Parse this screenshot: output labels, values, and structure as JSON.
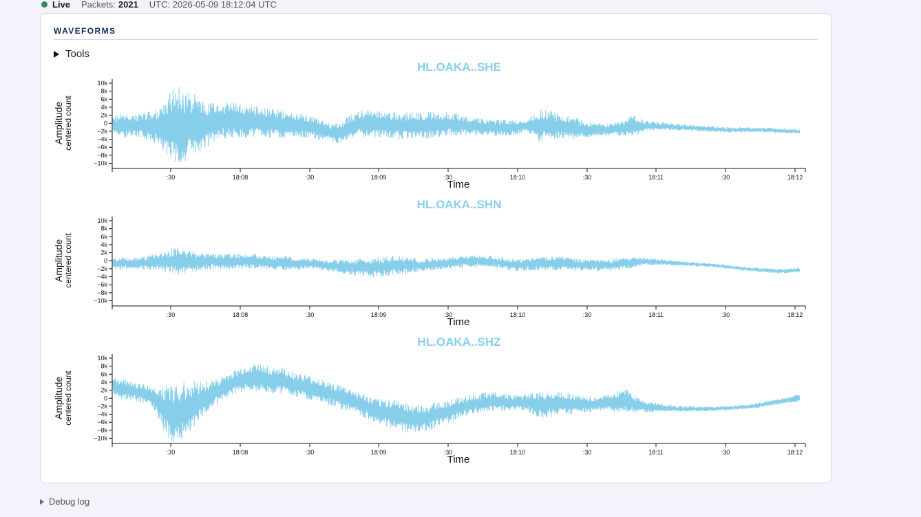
{
  "status": {
    "live_label": "Live",
    "packets_label": "Packets:",
    "packets_value": "2021",
    "utc_text": "UTC: 2026-05-09 18:12:04 UTC",
    "live_color": "#2e8b57"
  },
  "panel": {
    "title": "WAVEFORMS",
    "tools_label": "Tools"
  },
  "debug_label": "Debug log",
  "chart_data": [
    {
      "type": "line",
      "title": "HL.OAKA..SHE",
      "xlabel": "Time",
      "ylabel": "Amplitude",
      "ylabel_sub": "centered count",
      "color": "#87ceeb",
      "x_ticks": [
        ":30",
        "18:08",
        ":30",
        "18:09",
        ":30",
        "18:10",
        ":30",
        "18:11",
        ":30",
        "18:12"
      ],
      "y_ticks": [
        "10k",
        "8k",
        "6k",
        "4k",
        "2k",
        "0",
        "−2k",
        "−4k",
        "−6k",
        "−8k",
        "−10k"
      ],
      "ylim": [
        -11000,
        11000
      ],
      "x_start": "18:07:08",
      "x_end": "18:12:04",
      "envelope": {
        "times": [
          "18:07:08",
          "18:07:20",
          "18:07:28",
          "18:07:33",
          "18:07:36",
          "18:07:40",
          "18:07:46",
          "18:07:52",
          "18:08:00",
          "18:08:10",
          "18:08:20",
          "18:08:30",
          "18:08:40",
          "18:08:45",
          "18:08:50",
          "18:08:55",
          "18:09:00",
          "18:09:10",
          "18:09:20",
          "18:09:30",
          "18:09:40",
          "18:09:50",
          "18:10:00",
          "18:10:05",
          "18:10:10",
          "18:10:15",
          "18:10:20",
          "18:10:25",
          "18:10:30",
          "18:10:40",
          "18:10:47",
          "18:10:50",
          "18:10:55",
          "18:11:00",
          "18:11:15",
          "18:11:30",
          "18:11:45",
          "18:12:04"
        ],
        "center": [
          0,
          0,
          0,
          0,
          0,
          0,
          0,
          1000,
          1500,
          1000,
          500,
          0,
          -1500,
          -2000,
          0,
          500,
          500,
          0,
          0,
          500,
          0,
          -500,
          -500,
          0,
          0,
          0,
          0,
          -500,
          -1000,
          -1000,
          -500,
          0,
          0,
          0,
          -500,
          -1000,
          -1000,
          -1500
        ],
        "halfwidth": [
          3000,
          3000,
          5000,
          9000,
          10000,
          9000,
          7000,
          5000,
          4500,
          4000,
          3500,
          3000,
          2500,
          2500,
          3000,
          3500,
          3500,
          3500,
          3500,
          3000,
          2500,
          2000,
          2000,
          1500,
          4000,
          4000,
          3000,
          3000,
          2000,
          1500,
          2000,
          3000,
          1500,
          1000,
          800,
          700,
          600,
          600
        ]
      }
    },
    {
      "type": "line",
      "title": "HL.OAKA..SHN",
      "xlabel": "Time",
      "ylabel": "Amplitude",
      "ylabel_sub": "centered count",
      "color": "#87ceeb",
      "x_ticks": [
        ":30",
        "18:08",
        ":30",
        "18:09",
        ":30",
        "18:10",
        ":30",
        "18:11",
        ":30",
        "18:12"
      ],
      "y_ticks": [
        "10k",
        "8k",
        "6k",
        "4k",
        "2k",
        "0",
        "−2k",
        "−4k",
        "−6k",
        "−8k",
        "−10k"
      ],
      "ylim": [
        -11000,
        11000
      ],
      "x_start": "18:07:08",
      "x_end": "18:12:04",
      "envelope": {
        "times": [
          "18:07:08",
          "18:07:20",
          "18:07:30",
          "18:07:35",
          "18:07:40",
          "18:07:50",
          "18:08:00",
          "18:08:10",
          "18:08:20",
          "18:08:30",
          "18:08:40",
          "18:08:50",
          "18:09:00",
          "18:09:10",
          "18:09:20",
          "18:09:30",
          "18:09:40",
          "18:09:50",
          "18:10:00",
          "18:10:10",
          "18:10:20",
          "18:10:30",
          "18:10:40",
          "18:10:47",
          "18:10:55",
          "18:11:10",
          "18:11:25",
          "18:11:40",
          "18:11:55",
          "18:12:04"
        ],
        "center": [
          0,
          0,
          500,
          500,
          500,
          500,
          500,
          500,
          0,
          0,
          -500,
          -1000,
          -1000,
          -500,
          -500,
          0,
          500,
          500,
          -500,
          0,
          0,
          -500,
          -500,
          0,
          500,
          0,
          -500,
          -1500,
          -2000,
          -1500
        ],
        "halfwidth": [
          1500,
          1500,
          2500,
          3500,
          3000,
          2000,
          2000,
          1800,
          1800,
          1500,
          1500,
          2000,
          2500,
          2500,
          1500,
          1500,
          1500,
          1500,
          1500,
          1800,
          1800,
          1500,
          1500,
          1500,
          1000,
          600,
          500,
          500,
          600,
          600
        ]
      }
    },
    {
      "type": "line",
      "title": "HL.OAKA..SHZ",
      "xlabel": "Time",
      "ylabel": "Amplitude",
      "ylabel_sub": "centered count",
      "color": "#87ceeb",
      "x_ticks": [
        ":30",
        "18:08",
        ":30",
        "18:09",
        ":30",
        "18:10",
        ":30",
        "18:11",
        ":30",
        "18:12"
      ],
      "y_ticks": [
        "10k",
        "8k",
        "6k",
        "4k",
        "2k",
        "0",
        "−2k",
        "−4k",
        "−6k",
        "−8k",
        "−10k"
      ],
      "ylim": [
        -11000,
        11000
      ],
      "x_start": "18:07:08",
      "x_end": "18:12:04",
      "envelope": {
        "times": [
          "18:07:08",
          "18:07:20",
          "18:07:25",
          "18:07:30",
          "18:07:35",
          "18:07:40",
          "18:07:50",
          "18:08:00",
          "18:08:08",
          "18:08:20",
          "18:08:30",
          "18:08:40",
          "18:08:50",
          "18:09:00",
          "18:09:10",
          "18:09:15",
          "18:09:20",
          "18:09:30",
          "18:09:40",
          "18:09:50",
          "18:10:00",
          "18:10:05",
          "18:10:10",
          "18:10:20",
          "18:10:30",
          "18:10:40",
          "18:10:47",
          "18:10:55",
          "18:11:10",
          "18:11:25",
          "18:11:40",
          "18:11:55",
          "18:12:04"
        ],
        "center": [
          3500,
          2000,
          1000,
          -2000,
          -3500,
          -2000,
          1500,
          4500,
          6000,
          5000,
          3500,
          2000,
          0,
          -2500,
          -3500,
          -4500,
          -4500,
          -3000,
          -1000,
          0,
          -500,
          -500,
          -1000,
          -500,
          -1000,
          -500,
          0,
          -1500,
          -2000,
          -2000,
          -1500,
          0,
          1000
        ],
        "halfwidth": [
          2500,
          2500,
          2500,
          6000,
          8000,
          7000,
          3500,
          3000,
          3500,
          3500,
          3000,
          3000,
          3000,
          3000,
          4000,
          4000,
          3500,
          3000,
          2500,
          2500,
          2000,
          2000,
          3500,
          3000,
          2000,
          2000,
          3500,
          1500,
          700,
          600,
          600,
          800,
          900
        ]
      }
    }
  ]
}
